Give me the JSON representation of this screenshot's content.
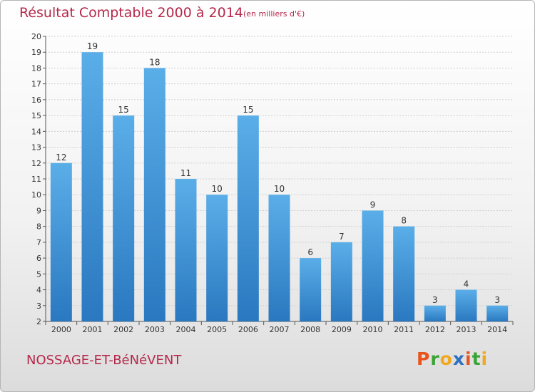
{
  "header": {
    "title": "Résultat Comptable 2000 à 2014",
    "subtitle": "(en milliers d'€)"
  },
  "footer": {
    "commune": "NOSSAGE-ET-BéNéVENT",
    "brand": [
      "P",
      "r",
      "o",
      "x",
      "i",
      "t",
      "i"
    ],
    "brand_colors": [
      "#e8541b",
      "#3aa335",
      "#f2a81c",
      "#2d6fc1",
      "#e8541b",
      "#3aa335",
      "#f2a81c"
    ]
  },
  "colors": {
    "title": "#b5284a",
    "bar_light": "#5aaee8",
    "bar_dark": "#2a78c0",
    "grid": "#cfcfcf"
  },
  "chart_data": {
    "type": "bar",
    "title": "Résultat Comptable 2000 à 2014",
    "ylabel": "en milliers d'€",
    "xlabel": "",
    "categories": [
      "2000",
      "2001",
      "2002",
      "2003",
      "2004",
      "2005",
      "2006",
      "2007",
      "2008",
      "2009",
      "2010",
      "2011",
      "2012",
      "2013",
      "2014"
    ],
    "values": [
      12,
      19,
      15,
      18,
      11,
      10,
      15,
      10,
      6,
      7,
      9,
      8,
      3,
      4,
      3
    ],
    "ylim": [
      2,
      20
    ],
    "yticks": [
      2,
      3,
      4,
      5,
      6,
      7,
      8,
      9,
      10,
      11,
      12,
      13,
      14,
      15,
      16,
      17,
      18,
      19,
      20
    ],
    "grid": true
  }
}
